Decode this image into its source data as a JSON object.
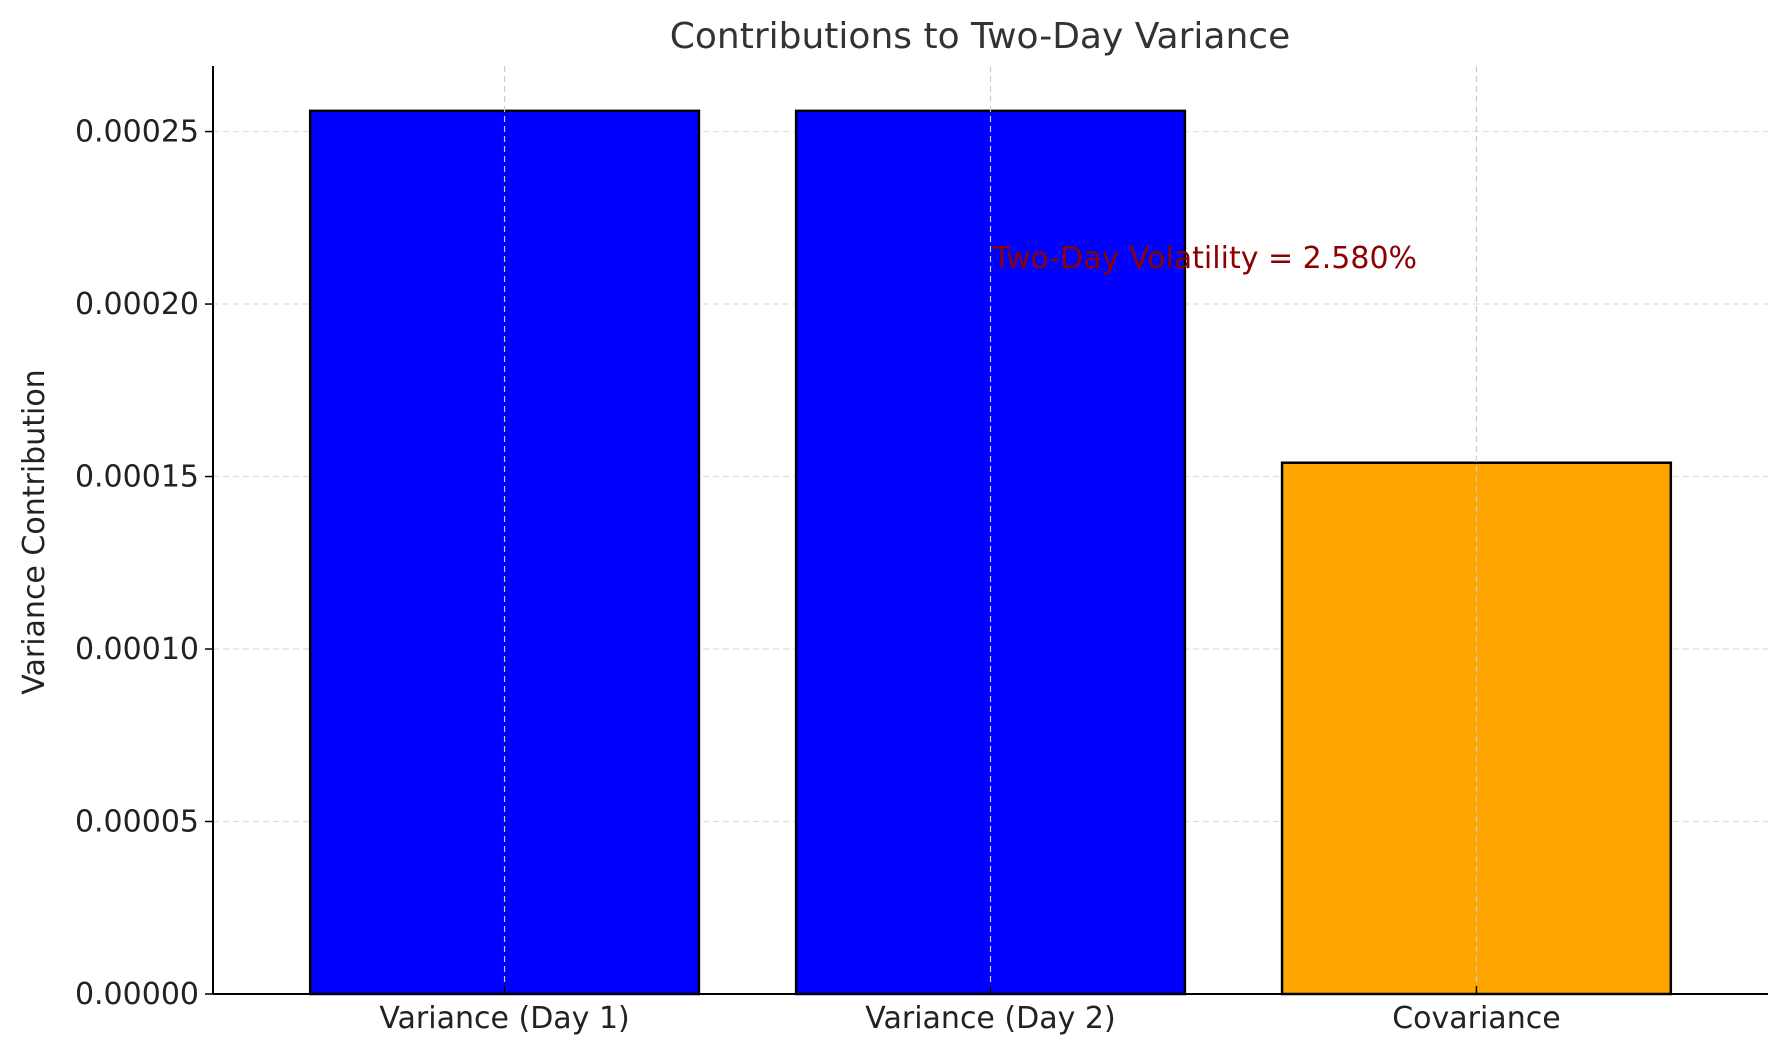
{
  "chart_data": {
    "type": "bar",
    "title": "Contributions to Two-Day Variance",
    "xlabel": "",
    "ylabel": "Variance Contribution",
    "categories": [
      "Variance (Day 1)",
      "Variance (Day 2)",
      "Covariance"
    ],
    "values": [
      0.000256,
      0.000256,
      0.000154
    ],
    "bar_colors": [
      "#0000ff",
      "#0000ff",
      "#ffa500"
    ],
    "bar_edge_color": "#000000",
    "ylim": [
      0,
      0.000269
    ],
    "yticks": [
      0,
      5e-05,
      0.0001,
      0.00015,
      0.0002,
      0.00025
    ],
    "ytick_labels": [
      "0.00000",
      "0.00005",
      "0.00010",
      "0.00015",
      "0.00020",
      "0.00025"
    ],
    "grid": true,
    "annotation": {
      "text": "Two-Day Volatility = 2.580%",
      "x_category_index": 1,
      "y": 0.000207,
      "color": "#8b0000"
    }
  }
}
